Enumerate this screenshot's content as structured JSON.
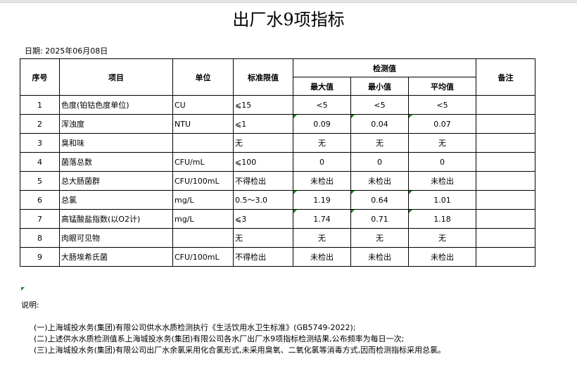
{
  "title": "出厂水9项指标",
  "date": "日期: 2025年06月08日",
  "headers": {
    "no": "序号",
    "item": "项目",
    "unit": "单位",
    "limit": "标准限值",
    "measured": "检测值",
    "max": "最大值",
    "min": "最小值",
    "avg": "平均值",
    "remark": "备注"
  },
  "rows": [
    {
      "no": "1",
      "item": "色度(铂钴色度单位)",
      "unit": "CU",
      "limit": "⩽15",
      "max": "<5",
      "min": "<5",
      "avg": "<5"
    },
    {
      "no": "2",
      "item": "浑浊度",
      "unit": "NTU",
      "limit": "⩽1",
      "max": "0.09",
      "min": "0.04",
      "avg": "0.07"
    },
    {
      "no": "3",
      "item": "臭和味",
      "unit": "",
      "limit": "无",
      "max": "无",
      "min": "无",
      "avg": "无"
    },
    {
      "no": "4",
      "item": "菌落总数",
      "unit": "CFU/mL",
      "limit": "⩽100",
      "max": "0",
      "min": "0",
      "avg": "0"
    },
    {
      "no": "5",
      "item": "总大肠菌群",
      "unit": "CFU/100mL",
      "limit": "不得检出",
      "max": "未检出",
      "min": "未检出",
      "avg": "未检出"
    },
    {
      "no": "6",
      "item": "总氯",
      "unit": "mg/L",
      "limit": "0.5～3.0",
      "max": "1.19",
      "min": "0.64",
      "avg": "1.01"
    },
    {
      "no": "7",
      "item": "高锰酸盐指数(以O2计)",
      "unit": "mg/L",
      "limit": "⩽3",
      "max": "1.74",
      "min": "0.71",
      "avg": "1.18"
    },
    {
      "no": "8",
      "item": "肉眼可见物",
      "unit": "",
      "limit": "无",
      "max": "无",
      "min": "无",
      "avg": "无"
    },
    {
      "no": "9",
      "item": "大肠埃希氏菌",
      "unit": "CFU/100mL",
      "limit": "不得检出",
      "max": "未检出",
      "min": "未检出",
      "avg": "未检出"
    }
  ],
  "notes": {
    "label": "说明:",
    "lines": [
      "(一)上海城投水务(集团)有限公司供水水质检测执行《生活饮用水卫生标准》(GB5749-2022);",
      "(二)上述供水水质检测值系上海城投水务(集团)有限公司各水厂出厂水9项指标检测结果,公布频率为每日一次;",
      "(三)上海城投水务(集团)有限公司出厂水余氯采用化合氯形式,未采用臭氧、二氧化氯等消毒方式,因而检测指标采用总氯。"
    ]
  }
}
